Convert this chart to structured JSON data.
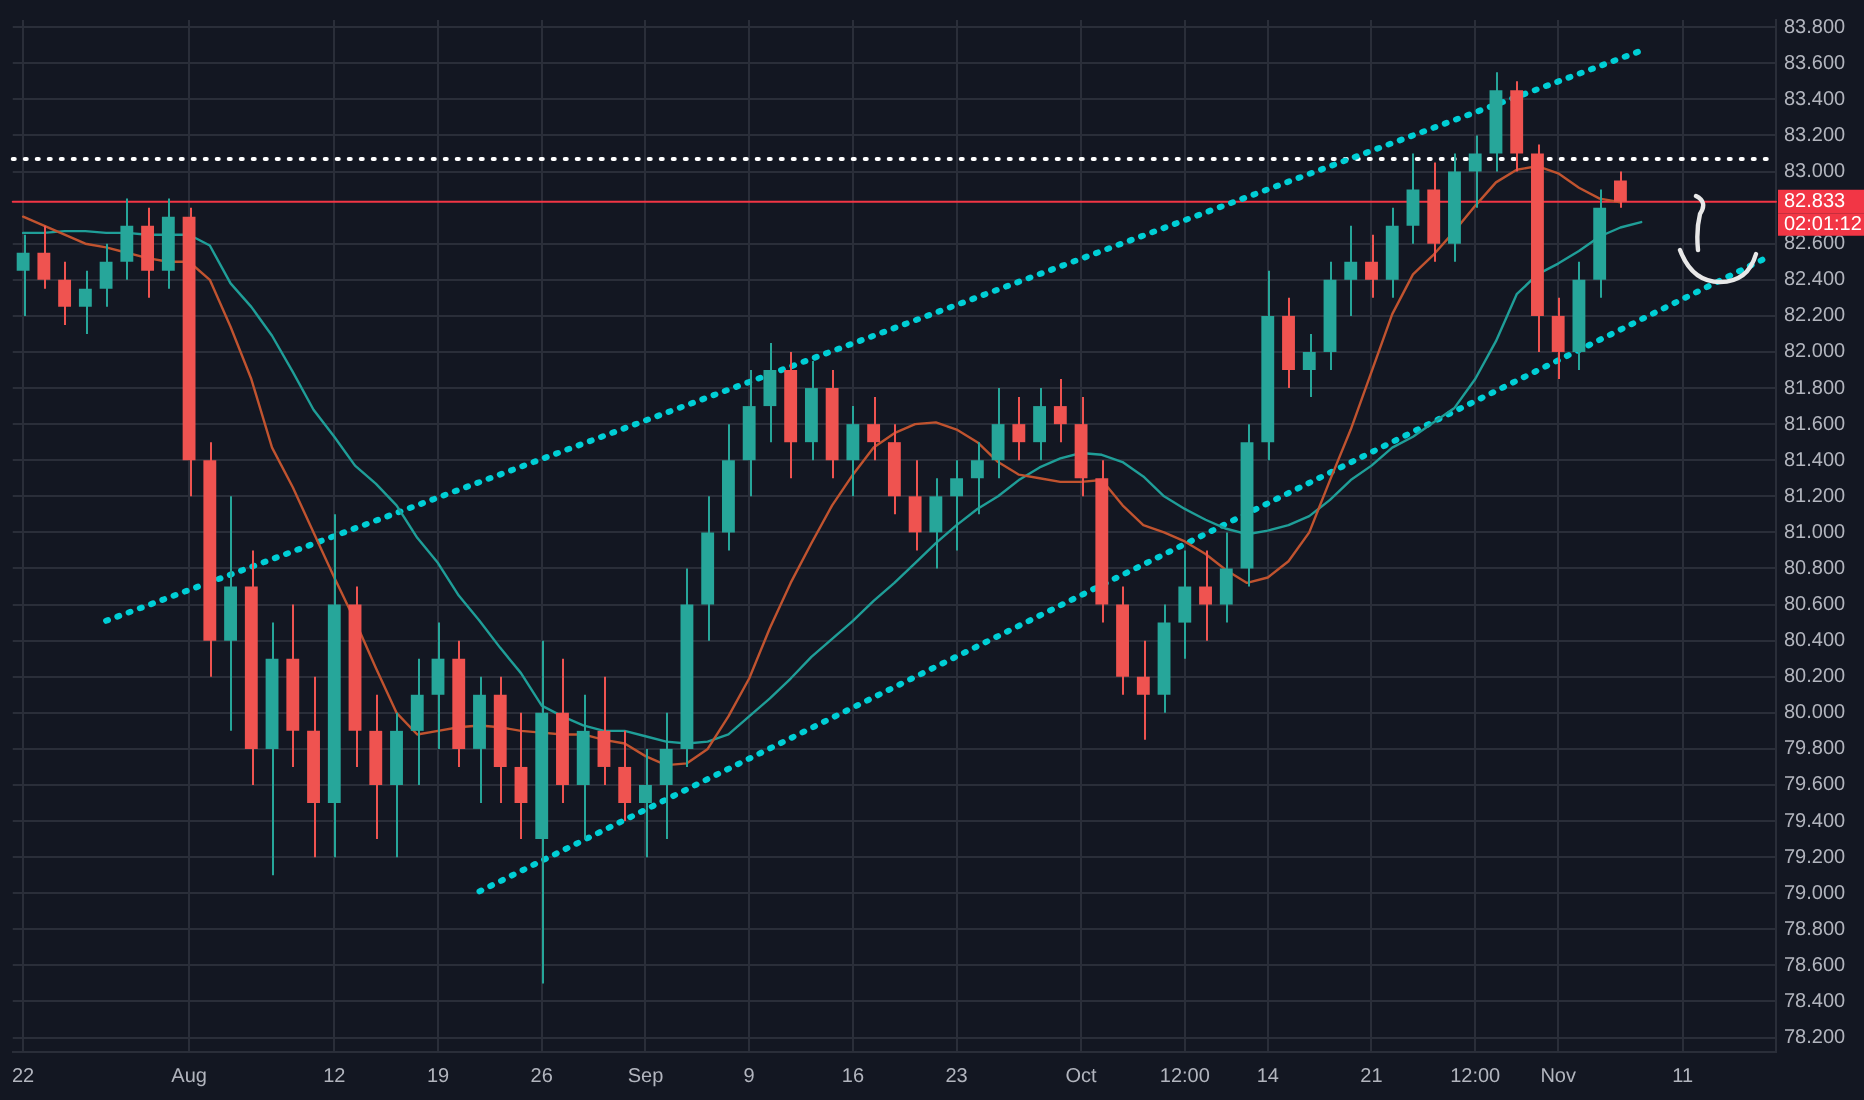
{
  "chart_data": {
    "type": "candlestick",
    "categories": [
      "22",
      null,
      null,
      null,
      null,
      null,
      null,
      null,
      "Aug",
      null,
      null,
      null,
      null,
      null,
      null,
      "12",
      null,
      null,
      null,
      null,
      "19",
      null,
      null,
      null,
      null,
      "26",
      null,
      null,
      null,
      null,
      "Sep",
      null,
      null,
      null,
      null,
      "9",
      null,
      null,
      null,
      null,
      "16",
      null,
      null,
      null,
      null,
      "23",
      null,
      null,
      null,
      null,
      null,
      "Oct",
      null,
      null,
      null,
      null,
      "12:00",
      null,
      null,
      null,
      "14",
      null,
      null,
      null,
      null,
      "21",
      null,
      null,
      null,
      null,
      "12:00",
      null,
      null,
      null,
      "Nov",
      null,
      null,
      null,
      null,
      null,
      "11",
      null,
      null,
      null,
      null
    ],
    "ohlc": [
      [
        82.45,
        82.65,
        82.2,
        82.55
      ],
      [
        82.55,
        82.7,
        82.35,
        82.4
      ],
      [
        82.4,
        82.5,
        82.15,
        82.25
      ],
      [
        82.25,
        82.45,
        82.1,
        82.35
      ],
      [
        82.35,
        82.6,
        82.25,
        82.5
      ],
      [
        82.5,
        82.85,
        82.4,
        82.7
      ],
      [
        82.7,
        82.8,
        82.3,
        82.45
      ],
      [
        82.45,
        82.85,
        82.35,
        82.75
      ],
      [
        82.75,
        82.8,
        81.2,
        81.4
      ],
      [
        81.4,
        81.5,
        80.2,
        80.4
      ],
      [
        80.4,
        81.2,
        79.9,
        80.7
      ],
      [
        80.7,
        80.9,
        79.6,
        79.8
      ],
      [
        79.8,
        80.5,
        79.1,
        80.3
      ],
      [
        80.3,
        80.6,
        79.7,
        79.9
      ],
      [
        79.9,
        80.2,
        79.2,
        79.5
      ],
      [
        79.5,
        81.1,
        79.2,
        80.6
      ],
      [
        80.6,
        80.7,
        79.7,
        79.9
      ],
      [
        79.9,
        80.1,
        79.3,
        79.6
      ],
      [
        79.6,
        80.0,
        79.2,
        79.9
      ],
      [
        79.9,
        80.3,
        79.6,
        80.1
      ],
      [
        80.1,
        80.5,
        79.8,
        80.3
      ],
      [
        80.3,
        80.4,
        79.7,
        79.8
      ],
      [
        79.8,
        80.2,
        79.5,
        80.1
      ],
      [
        80.1,
        80.2,
        79.5,
        79.7
      ],
      [
        79.7,
        80.0,
        79.3,
        79.5
      ],
      [
        79.3,
        80.4,
        78.5,
        80.0
      ],
      [
        80.0,
        80.3,
        79.5,
        79.6
      ],
      [
        79.6,
        80.1,
        79.3,
        79.9
      ],
      [
        79.9,
        80.2,
        79.6,
        79.7
      ],
      [
        79.7,
        79.9,
        79.4,
        79.5
      ],
      [
        79.5,
        79.8,
        79.2,
        79.6
      ],
      [
        79.6,
        80.0,
        79.3,
        79.8
      ],
      [
        79.8,
        80.8,
        79.7,
        80.6
      ],
      [
        80.6,
        81.2,
        80.4,
        81.0
      ],
      [
        81.0,
        81.6,
        80.9,
        81.4
      ],
      [
        81.4,
        81.9,
        81.2,
        81.7
      ],
      [
        81.7,
        82.05,
        81.5,
        81.9
      ],
      [
        81.9,
        82.0,
        81.3,
        81.5
      ],
      [
        81.5,
        81.95,
        81.4,
        81.8
      ],
      [
        81.8,
        81.9,
        81.3,
        81.4
      ],
      [
        81.4,
        81.7,
        81.2,
        81.6
      ],
      [
        81.6,
        81.75,
        81.4,
        81.5
      ],
      [
        81.5,
        81.6,
        81.1,
        81.2
      ],
      [
        81.2,
        81.4,
        80.9,
        81.0
      ],
      [
        81.0,
        81.3,
        80.8,
        81.2
      ],
      [
        81.2,
        81.4,
        80.9,
        81.3
      ],
      [
        81.3,
        81.5,
        81.1,
        81.4
      ],
      [
        81.4,
        81.8,
        81.3,
        81.6
      ],
      [
        81.6,
        81.75,
        81.4,
        81.5
      ],
      [
        81.5,
        81.8,
        81.4,
        81.7
      ],
      [
        81.7,
        81.85,
        81.5,
        81.6
      ],
      [
        81.6,
        81.75,
        81.2,
        81.3
      ],
      [
        81.3,
        81.4,
        80.5,
        80.6
      ],
      [
        80.6,
        80.7,
        80.1,
        80.2
      ],
      [
        80.2,
        80.4,
        79.85,
        80.1
      ],
      [
        80.1,
        80.6,
        80.0,
        80.5
      ],
      [
        80.5,
        80.9,
        80.3,
        80.7
      ],
      [
        80.7,
        80.9,
        80.4,
        80.6
      ],
      [
        80.6,
        81.0,
        80.5,
        80.8
      ],
      [
        80.8,
        81.6,
        80.7,
        81.5
      ],
      [
        81.5,
        82.45,
        81.4,
        82.2
      ],
      [
        82.2,
        82.3,
        81.8,
        81.9
      ],
      [
        81.9,
        82.1,
        81.75,
        82.0
      ],
      [
        82.0,
        82.5,
        81.9,
        82.4
      ],
      [
        82.4,
        82.7,
        82.2,
        82.5
      ],
      [
        82.5,
        82.65,
        82.3,
        82.4
      ],
      [
        82.4,
        82.8,
        82.3,
        82.7
      ],
      [
        82.7,
        83.1,
        82.6,
        82.9
      ],
      [
        82.9,
        83.05,
        82.5,
        82.6
      ],
      [
        82.6,
        83.1,
        82.5,
        83.0
      ],
      [
        83.0,
        83.2,
        82.8,
        83.1
      ],
      [
        83.1,
        83.55,
        83.0,
        83.45
      ],
      [
        83.45,
        83.5,
        83.0,
        83.1
      ],
      [
        83.1,
        83.15,
        82.0,
        82.2
      ],
      [
        82.2,
        82.3,
        81.85,
        82.0
      ],
      [
        82.0,
        82.5,
        81.9,
        82.4
      ],
      [
        82.4,
        82.9,
        82.3,
        82.8
      ],
      [
        82.95,
        83.0,
        82.8,
        82.833
      ],
      null,
      null,
      null,
      null,
      null,
      null,
      null
    ],
    "colors": [
      "#26a69a",
      "#ef5350",
      "#ef5350",
      "#26a69a",
      "#26a69a",
      "#26a69a",
      "#ef5350",
      "#26a69a",
      "#ef5350",
      "#ef5350",
      "#26a69a",
      "#ef5350",
      "#26a69a",
      "#ef5350",
      "#ef5350",
      "#26a69a",
      "#ef5350",
      "#ef5350",
      "#26a69a",
      "#26a69a",
      "#26a69a",
      "#ef5350",
      "#26a69a",
      "#ef5350",
      "#ef5350",
      "#26a69a",
      "#ef5350",
      "#26a69a",
      "#ef5350",
      "#ef5350",
      "#26a69a",
      "#26a69a",
      "#26a69a",
      "#26a69a",
      "#26a69a",
      "#26a69a",
      "#26a69a",
      "#ef5350",
      "#26a69a",
      "#ef5350",
      "#26a69a",
      "#ef5350",
      "#ef5350",
      "#ef5350",
      "#26a69a",
      "#26a69a",
      "#26a69a",
      "#26a69a",
      "#ef5350",
      "#26a69a",
      "#ef5350",
      "#ef5350",
      "#ef5350",
      "#ef5350",
      "#ef5350",
      "#26a69a",
      "#26a69a",
      "#ef5350",
      "#26a69a",
      "#26a69a",
      "#26a69a",
      "#ef5350",
      "#26a69a",
      "#26a69a",
      "#26a69a",
      "#ef5350",
      "#26a69a",
      "#26a69a",
      "#ef5350",
      "#26a69a",
      "#26a69a",
      "#26a69a",
      "#ef5350",
      "#ef5350",
      "#ef5350",
      "#26a69a",
      "#26a69a",
      "#ef5350",
      null,
      null,
      null,
      null,
      null,
      null,
      null
    ],
    "series": [
      {
        "type": "line",
        "color": "#c0532f",
        "line_style": "solid",
        "values": [
          82.75,
          82.7,
          82.65,
          82.6,
          82.58,
          82.55,
          82.52,
          82.5,
          82.5,
          82.4,
          82.14,
          81.85,
          81.47,
          81.25,
          81.0,
          80.75,
          80.51,
          80.25,
          80.0,
          79.88,
          79.9,
          79.92,
          79.93,
          79.92,
          79.9,
          79.89,
          79.88,
          79.88,
          79.85,
          79.83,
          79.76,
          79.71,
          79.72,
          79.8,
          79.98,
          80.19,
          80.47,
          80.72,
          80.94,
          81.15,
          81.32,
          81.47,
          81.55,
          81.6,
          81.61,
          81.57,
          81.5,
          81.39,
          81.32,
          81.3,
          81.28,
          81.28,
          81.29,
          81.15,
          81.04,
          81.0,
          80.95,
          80.88,
          80.79,
          80.72,
          80.75,
          80.84,
          81.0,
          81.29,
          81.57,
          81.89,
          82.21,
          82.43,
          82.54,
          82.67,
          82.81,
          82.94,
          83.01,
          83.03,
          82.99,
          82.91,
          82.85,
          82.83,
          null,
          null,
          null,
          null,
          null,
          null,
          null
        ]
      },
      {
        "type": "line",
        "color": "#1f9e98",
        "line_style": "solid",
        "values": [
          82.66,
          82.66,
          82.67,
          82.67,
          82.66,
          82.66,
          82.65,
          82.65,
          82.65,
          82.59,
          82.38,
          82.25,
          82.09,
          81.89,
          81.68,
          81.53,
          81.37,
          81.27,
          81.15,
          80.97,
          80.83,
          80.65,
          80.51,
          80.36,
          80.22,
          80.04,
          79.98,
          79.93,
          79.9,
          79.9,
          79.87,
          79.84,
          79.83,
          79.84,
          79.88,
          79.98,
          80.08,
          80.19,
          80.31,
          80.41,
          80.51,
          80.62,
          80.72,
          80.83,
          80.94,
          81.04,
          81.13,
          81.2,
          81.29,
          81.36,
          81.41,
          81.44,
          81.43,
          81.39,
          81.31,
          81.2,
          81.13,
          81.07,
          81.02,
          80.99,
          81.01,
          81.04,
          81.09,
          81.18,
          81.29,
          81.37,
          81.47,
          81.53,
          81.61,
          81.69,
          81.85,
          82.06,
          82.32,
          82.43,
          82.49,
          82.56,
          82.64,
          82.69,
          82.72,
          null,
          null,
          null,
          null,
          null,
          null
        ]
      },
      {
        "type": "line",
        "color": "#00cfd6",
        "line_style": "dotted",
        "values": [
          null,
          null,
          null,
          null,
          80.51,
          null,
          null,
          null,
          null,
          null,
          null,
          null,
          null,
          null,
          null,
          null,
          null,
          null,
          null,
          null,
          null,
          null,
          null,
          null,
          null,
          null,
          null,
          null,
          null,
          null,
          null,
          null,
          null,
          null,
          null,
          null,
          null,
          null,
          null,
          null,
          null,
          null,
          null,
          null,
          null,
          null,
          null,
          null,
          null,
          null,
          null,
          null,
          null,
          null,
          null,
          null,
          null,
          null,
          null,
          null,
          null,
          null,
          null,
          null,
          null,
          null,
          null,
          null,
          null,
          null,
          null,
          null,
          null,
          null,
          null,
          null,
          null,
          null,
          83.67,
          null,
          null,
          null,
          null,
          null,
          null
        ]
      },
      {
        "type": "line",
        "color": "#00cfd6",
        "line_style": "dotted",
        "values": [
          null,
          null,
          null,
          null,
          null,
          null,
          null,
          null,
          null,
          null,
          null,
          null,
          null,
          null,
          null,
          null,
          null,
          null,
          null,
          null,
          null,
          null,
          79.01,
          null,
          null,
          null,
          null,
          null,
          null,
          null,
          null,
          null,
          null,
          null,
          null,
          null,
          null,
          null,
          null,
          null,
          null,
          null,
          null,
          null,
          null,
          null,
          null,
          null,
          null,
          null,
          null,
          null,
          null,
          null,
          null,
          null,
          null,
          null,
          null,
          null,
          null,
          null,
          null,
          null,
          null,
          null,
          null,
          null,
          null,
          null,
          null,
          null,
          null,
          null,
          null,
          null,
          null,
          null,
          null,
          null,
          null,
          null,
          null,
          null,
          82.52
        ]
      }
    ],
    "ylim": [
      78.12,
      83.84
    ],
    "yticks": [
      {
        "value": 78.2,
        "label": "78.200"
      },
      {
        "value": 78.4,
        "label": "78.400"
      },
      {
        "value": 78.6,
        "label": "78.600"
      },
      {
        "value": 78.8,
        "label": "78.800"
      },
      {
        "value": 79.0,
        "label": "79.000"
      },
      {
        "value": 79.2,
        "label": "79.200"
      },
      {
        "value": 79.4,
        "label": "79.400"
      },
      {
        "value": 79.6,
        "label": "79.600"
      },
      {
        "value": 79.8,
        "label": "79.800"
      },
      {
        "value": 80.0,
        "label": "80.000"
      },
      {
        "value": 80.2,
        "label": "80.200"
      },
      {
        "value": 80.4,
        "label": "80.400"
      },
      {
        "value": 80.6,
        "label": "80.600"
      },
      {
        "value": 80.8,
        "label": "80.800"
      },
      {
        "value": 81.0,
        "label": "81.000"
      },
      {
        "value": 81.2,
        "label": "81.200"
      },
      {
        "value": 81.4,
        "label": "81.400"
      },
      {
        "value": 81.6,
        "label": "81.600"
      },
      {
        "value": 81.8,
        "label": "81.800"
      },
      {
        "value": 82.0,
        "label": "82.000"
      },
      {
        "value": 82.2,
        "label": "82.200"
      },
      {
        "value": 82.4,
        "label": "82.400"
      },
      {
        "value": 82.6,
        "label": "82.600"
      },
      {
        "value": 83.0,
        "label": "83.000"
      },
      {
        "value": 83.2,
        "label": "83.200"
      },
      {
        "value": 83.4,
        "label": "83.400"
      },
      {
        "value": 83.6,
        "label": "83.600"
      },
      {
        "value": 83.8,
        "label": "83.800"
      }
    ],
    "ref_lines": [
      {
        "axis": "y",
        "value": 83.07,
        "color": "#ffffff",
        "line_style": "dotted"
      },
      {
        "axis": "y",
        "value": 82.833,
        "label": "82.833",
        "color": "#f23645",
        "line_style": "solid"
      }
    ],
    "annotations": [
      "02:01:12"
    ],
    "grid": true,
    "legend": false
  }
}
